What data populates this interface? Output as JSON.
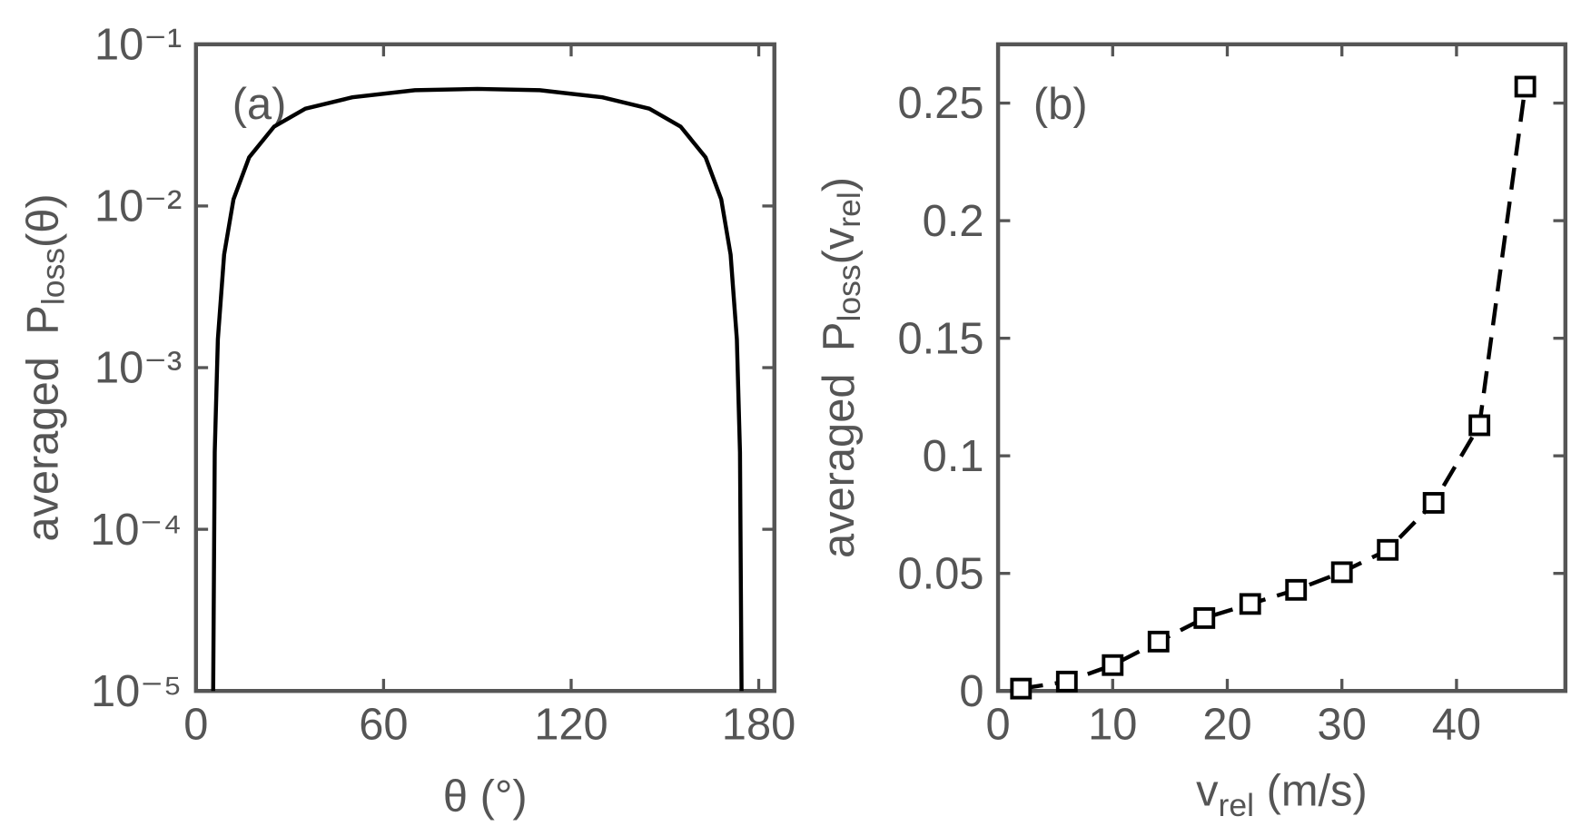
{
  "chart_data": [
    {
      "type": "line",
      "panel_label": "(a)",
      "y_label_parts": [
        "averaged",
        "P",
        "loss",
        "(θ)"
      ],
      "y_label_subscript": [
        false,
        false,
        true,
        false
      ],
      "x_label": "θ (°)",
      "x": [
        5.5,
        6,
        7,
        9,
        12,
        17,
        25,
        35,
        50,
        70,
        90,
        110,
        130,
        145,
        155,
        163,
        168,
        171,
        173,
        174,
        174.5
      ],
      "values": [
        1e-05,
        0.0003,
        0.0015,
        0.005,
        0.011,
        0.02,
        0.031,
        0.04,
        0.047,
        0.052,
        0.053,
        0.052,
        0.047,
        0.04,
        0.031,
        0.02,
        0.011,
        0.005,
        0.0015,
        0.0003,
        1e-05
      ],
      "color": "#000000",
      "line_style": "solid",
      "marker": "none",
      "log_y": true,
      "xlim": [
        0,
        185
      ],
      "xticks": [
        0,
        60,
        120,
        180
      ],
      "ylim": [
        1e-05,
        0.1
      ],
      "yticks": [
        {
          "value": 1e-05,
          "label": "10⁻⁵"
        },
        {
          "value": 0.0001,
          "label": "10⁻⁴"
        },
        {
          "value": 0.001,
          "label": "10⁻³"
        },
        {
          "value": 0.01,
          "label": "10⁻²"
        },
        {
          "value": 0.1,
          "label": "10⁻¹"
        }
      ]
    },
    {
      "type": "line",
      "panel_label": "(b)",
      "y_label_parts": [
        "averaged",
        "P",
        "loss",
        "(v",
        "rel",
        ")"
      ],
      "y_label_subscript": [
        false,
        false,
        true,
        false,
        true,
        false
      ],
      "x_label_parts": [
        "v",
        "rel",
        " (m/s)"
      ],
      "x_label_subscript": [
        false,
        true,
        false
      ],
      "x": [
        2,
        6,
        10,
        14,
        18,
        22,
        26,
        30,
        34,
        38,
        42,
        46
      ],
      "values": [
        0.001,
        0.004,
        0.011,
        0.021,
        0.031,
        0.037,
        0.043,
        0.0505,
        0.06,
        0.08,
        0.113,
        0.257
      ],
      "color": "#000000",
      "line_style": "dashed",
      "marker": "square",
      "log_y": false,
      "xlim": [
        0,
        49.5
      ],
      "xticks": [
        0,
        10,
        20,
        30,
        40
      ],
      "ylim": [
        0,
        0.275
      ],
      "yticks": [
        0,
        0.05,
        0.1,
        0.15,
        0.2,
        0.25
      ]
    }
  ]
}
